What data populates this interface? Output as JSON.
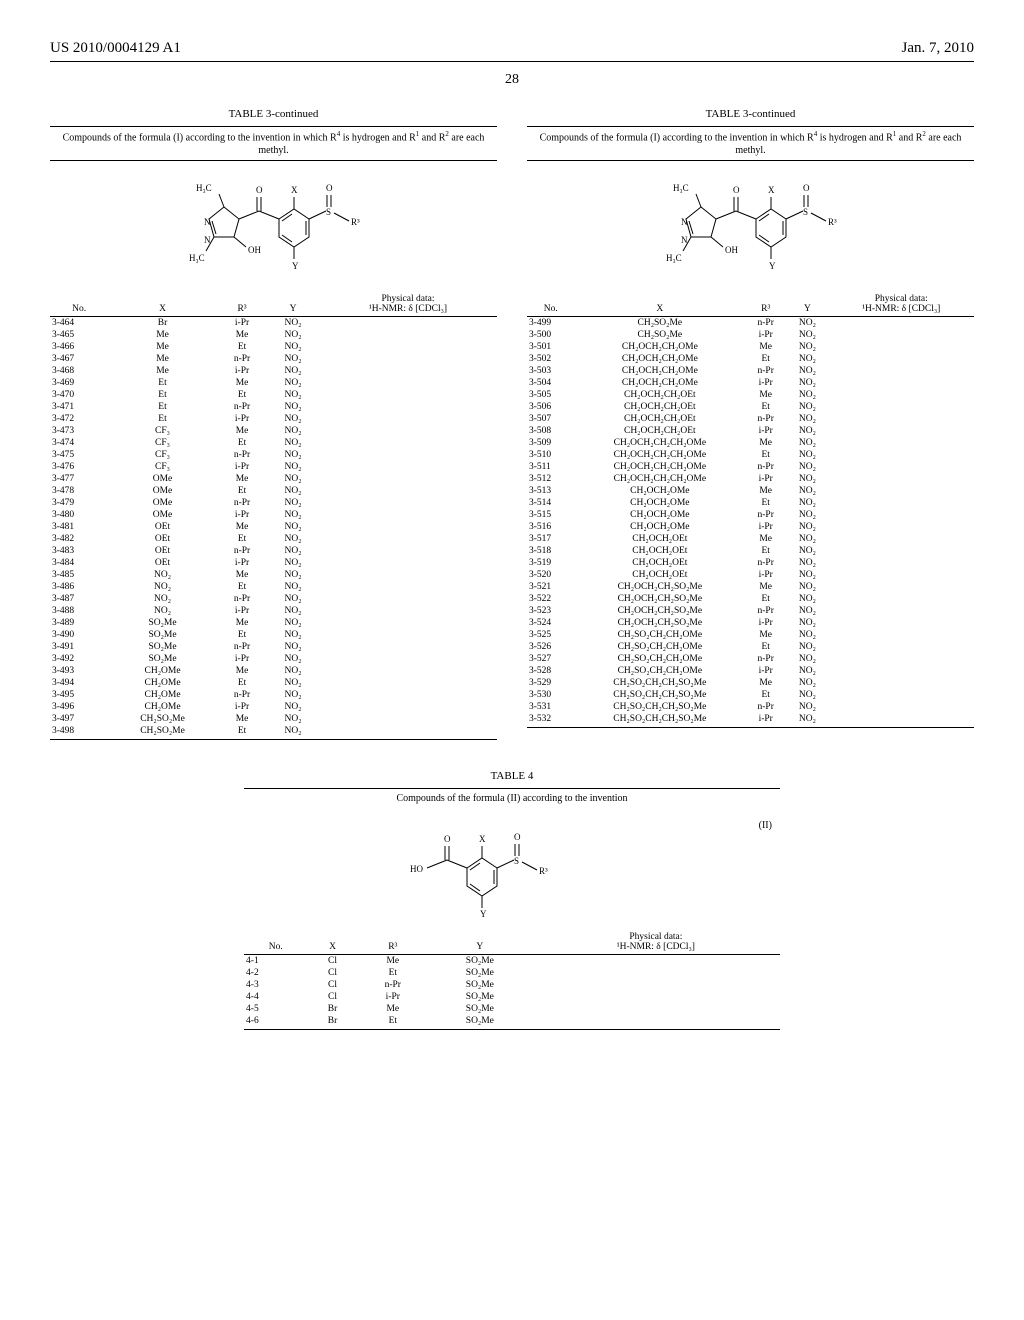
{
  "header": {
    "pubno": "US 2010/0004129 A1",
    "date": "Jan. 7, 2010"
  },
  "page_number": "28",
  "table3_title": "TABLE 3-continued",
  "table3_caption_pre": "Compounds of the formula (I) according to the invention in which R",
  "table3_caption_mid": " is hydrogen and R",
  "table3_caption_and": " and R",
  "table3_caption_end": " are each methyl.",
  "columns_t3": {
    "no": "No.",
    "x": "X",
    "r3": "R³",
    "y": "Y",
    "phys_l1": "Physical data:",
    "phys_l2": "¹H-NMR: δ [CDCl₃]"
  },
  "table3_left": [
    [
      "3-464",
      "Br",
      "i-Pr",
      "NO₂"
    ],
    [
      "3-465",
      "Me",
      "Me",
      "NO₂"
    ],
    [
      "3-466",
      "Me",
      "Et",
      "NO₂"
    ],
    [
      "3-467",
      "Me",
      "n-Pr",
      "NO₂"
    ],
    [
      "3-468",
      "Me",
      "i-Pr",
      "NO₂"
    ],
    [
      "3-469",
      "Et",
      "Me",
      "NO₂"
    ],
    [
      "3-470",
      "Et",
      "Et",
      "NO₂"
    ],
    [
      "3-471",
      "Et",
      "n-Pr",
      "NO₂"
    ],
    [
      "3-472",
      "Et",
      "i-Pr",
      "NO₂"
    ],
    [
      "3-473",
      "CF₃",
      "Me",
      "NO₂"
    ],
    [
      "3-474",
      "CF₃",
      "Et",
      "NO₂"
    ],
    [
      "3-475",
      "CF₃",
      "n-Pr",
      "NO₂"
    ],
    [
      "3-476",
      "CF₃",
      "i-Pr",
      "NO₂"
    ],
    [
      "3-477",
      "OMe",
      "Me",
      "NO₂"
    ],
    [
      "3-478",
      "OMe",
      "Et",
      "NO₂"
    ],
    [
      "3-479",
      "OMe",
      "n-Pr",
      "NO₂"
    ],
    [
      "3-480",
      "OMe",
      "i-Pr",
      "NO₂"
    ],
    [
      "3-481",
      "OEt",
      "Me",
      "NO₂"
    ],
    [
      "3-482",
      "OEt",
      "Et",
      "NO₂"
    ],
    [
      "3-483",
      "OEt",
      "n-Pr",
      "NO₂"
    ],
    [
      "3-484",
      "OEt",
      "i-Pr",
      "NO₂"
    ],
    [
      "3-485",
      "NO₂",
      "Me",
      "NO₂"
    ],
    [
      "3-486",
      "NO₂",
      "Et",
      "NO₂"
    ],
    [
      "3-487",
      "NO₂",
      "n-Pr",
      "NO₂"
    ],
    [
      "3-488",
      "NO₂",
      "i-Pr",
      "NO₂"
    ],
    [
      "3-489",
      "SO₂Me",
      "Me",
      "NO₂"
    ],
    [
      "3-490",
      "SO₂Me",
      "Et",
      "NO₂"
    ],
    [
      "3-491",
      "SO₂Me",
      "n-Pr",
      "NO₂"
    ],
    [
      "3-492",
      "SO₂Me",
      "i-Pr",
      "NO₂"
    ],
    [
      "3-493",
      "CH₂OMe",
      "Me",
      "NO₂"
    ],
    [
      "3-494",
      "CH₂OMe",
      "Et",
      "NO₂"
    ],
    [
      "3-495",
      "CH₂OMe",
      "n-Pr",
      "NO₂"
    ],
    [
      "3-496",
      "CH₂OMe",
      "i-Pr",
      "NO₂"
    ],
    [
      "3-497",
      "CH₂SO₂Me",
      "Me",
      "NO₂"
    ],
    [
      "3-498",
      "CH₂SO₂Me",
      "Et",
      "NO₂"
    ]
  ],
  "table3_right": [
    [
      "3-499",
      "CH₂SO₂Me",
      "n-Pr",
      "NO₂"
    ],
    [
      "3-500",
      "CH₂SO₂Me",
      "i-Pr",
      "NO₂"
    ],
    [
      "3-501",
      "CH₂OCH₂CH₂OMe",
      "Me",
      "NO₂"
    ],
    [
      "3-502",
      "CH₂OCH₂CH₂OMe",
      "Et",
      "NO₂"
    ],
    [
      "3-503",
      "CH₂OCH₂CH₂OMe",
      "n-Pr",
      "NO₂"
    ],
    [
      "3-504",
      "CH₂OCH₂CH₂OMe",
      "i-Pr",
      "NO₂"
    ],
    [
      "3-505",
      "CH₂OCH₂CH₂OEt",
      "Me",
      "NO₂"
    ],
    [
      "3-506",
      "CH₂OCH₂CH₂OEt",
      "Et",
      "NO₂"
    ],
    [
      "3-507",
      "CH₂OCH₂CH₂OEt",
      "n-Pr",
      "NO₂"
    ],
    [
      "3-508",
      "CH₂OCH₂CH₂OEt",
      "i-Pr",
      "NO₂"
    ],
    [
      "3-509",
      "CH₂OCH₂CH₂CH₂OMe",
      "Me",
      "NO₂"
    ],
    [
      "3-510",
      "CH₂OCH₂CH₂CH₂OMe",
      "Et",
      "NO₂"
    ],
    [
      "3-511",
      "CH₂OCH₂CH₂CH₂OMe",
      "n-Pr",
      "NO₂"
    ],
    [
      "3-512",
      "CH₂OCH₂CH₂CH₂OMe",
      "i-Pr",
      "NO₂"
    ],
    [
      "3-513",
      "CH₂OCH₂OMe",
      "Me",
      "NO₂"
    ],
    [
      "3-514",
      "CH₂OCH₂OMe",
      "Et",
      "NO₂"
    ],
    [
      "3-515",
      "CH₂OCH₂OMe",
      "n-Pr",
      "NO₂"
    ],
    [
      "3-516",
      "CH₂OCH₂OMe",
      "i-Pr",
      "NO₂"
    ],
    [
      "3-517",
      "CH₂OCH₂OEt",
      "Me",
      "NO₂"
    ],
    [
      "3-518",
      "CH₂OCH₂OEt",
      "Et",
      "NO₂"
    ],
    [
      "3-519",
      "CH₂OCH₂OEt",
      "n-Pr",
      "NO₂"
    ],
    [
      "3-520",
      "CH₂OCH₂OEt",
      "i-Pr",
      "NO₂"
    ],
    [
      "3-521",
      "CH₂OCH₂CH₂SO₂Me",
      "Me",
      "NO₂"
    ],
    [
      "3-522",
      "CH₂OCH₂CH₂SO₂Me",
      "Et",
      "NO₂"
    ],
    [
      "3-523",
      "CH₂OCH₂CH₂SO₂Me",
      "n-Pr",
      "NO₂"
    ],
    [
      "3-524",
      "CH₂OCH₂CH₂SO₂Me",
      "i-Pr",
      "NO₂"
    ],
    [
      "3-525",
      "CH₂SO₂CH₂CH₂OMe",
      "Me",
      "NO₂"
    ],
    [
      "3-526",
      "CH₂SO₂CH₂CH₂OMe",
      "Et",
      "NO₂"
    ],
    [
      "3-527",
      "CH₂SO₂CH₂CH₂OMe",
      "n-Pr",
      "NO₂"
    ],
    [
      "3-528",
      "CH₂SO₂CH₂CH₂OMe",
      "i-Pr",
      "NO₂"
    ],
    [
      "3-529",
      "CH₂SO₂CH₂CH₂SO₂Me",
      "Me",
      "NO₂"
    ],
    [
      "3-530",
      "CH₂SO₂CH₂CH₂SO₂Me",
      "Et",
      "NO₂"
    ],
    [
      "3-531",
      "CH₂SO₂CH₂CH₂SO₂Me",
      "n-Pr",
      "NO₂"
    ],
    [
      "3-532",
      "CH₂SO₂CH₂CH₂SO₂Me",
      "i-Pr",
      "NO₂"
    ]
  ],
  "table4_title": "TABLE 4",
  "table4_caption": "Compounds of the formula (II) according to the invention",
  "formula2_label": "(II)",
  "table4_rows": [
    [
      "4-1",
      "Cl",
      "Me",
      "SO₂Me"
    ],
    [
      "4-2",
      "Cl",
      "Et",
      "SO₂Me"
    ],
    [
      "4-3",
      "Cl",
      "n-Pr",
      "SO₂Me"
    ],
    [
      "4-4",
      "Cl",
      "i-Pr",
      "SO₂Me"
    ],
    [
      "4-5",
      "Br",
      "Me",
      "SO₂Me"
    ],
    [
      "4-6",
      "Br",
      "Et",
      "SO₂Me"
    ]
  ],
  "struct_labels": {
    "h3c": "H₃C",
    "oh": "OH",
    "ho": "HO",
    "x": "X",
    "y": "Y",
    "o": "O",
    "s": "S",
    "n": "N",
    "r3": "R³"
  }
}
